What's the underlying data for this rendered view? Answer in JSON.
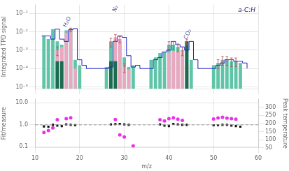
{
  "chart_data": [
    {
      "type": "bar",
      "log": "y",
      "ylabel": "Integrated TPD signal",
      "xlim": [
        10,
        60
      ],
      "xticks": [
        10,
        20,
        30,
        40,
        50,
        60
      ],
      "ylim": [
        8e-06,
        0.3
      ],
      "yticks": [
        {
          "value": 1e-05,
          "label": "10⁻⁵"
        },
        {
          "value": 0.0001,
          "label": "10⁻⁴"
        },
        {
          "value": 0.001,
          "label": "10⁻³"
        },
        {
          "value": 0.01,
          "label": "10⁻²"
        },
        {
          "value": 0.1,
          "label": "10⁻¹"
        }
      ],
      "grid": true,
      "tick_labels": "y",
      "annotations": [
        {
          "text": "H₂O",
          "x": 17.3,
          "y": 0.016,
          "color": "#555599"
        },
        {
          "text": "N₂",
          "x": 28.3,
          "y": 0.11,
          "color": "#555599"
        },
        {
          "text": "CO₂",
          "x": 44.3,
          "y": 0.0035,
          "color": "#555599"
        },
        {
          "text": "a-C:H",
          "color": "#222266"
        }
      ],
      "series": [
        {
          "type": "bar",
          "color": "#60c4a8",
          "x": [
            12,
            13,
            14,
            15,
            16,
            17,
            18,
            19,
            20,
            26,
            27,
            28,
            29,
            30,
            31,
            32,
            36,
            37,
            38,
            39,
            40,
            41,
            42,
            43,
            44,
            45,
            50,
            51,
            52,
            53,
            54,
            55,
            56
          ],
          "values": [
            0.006,
            0.004,
            0.014,
            0.003,
            0.002,
            0.012,
            0.015,
            0.0003,
            0.00015,
            0.00012,
            0.003,
            0.0003,
            0.003,
            0.0004,
            0.00012,
            0.00015,
            0.0003,
            0.0004,
            0.0007,
            0.0008,
            0.002,
            0.002,
            0.0015,
            0.001,
            0.003,
            0.0003,
            0.00015,
            0.0002,
            0.0003,
            0.0003,
            0.00025,
            0.00025,
            0.0002
          ]
        },
        {
          "type": "bar",
          "color": "#e8a8c0",
          "x": [
            15,
            16,
            17,
            18,
            19,
            28,
            29,
            30,
            31,
            40,
            41,
            42,
            43,
            44
          ],
          "values": [
            0.001,
            0.0015,
            0.009,
            0.013,
            0.0001,
            0.005,
            0.004,
            0.00012,
            9e-05,
            0.00075,
            0.0009,
            0.00085,
            0.0009,
            0.00015
          ]
        },
        {
          "type": "bar",
          "color": "#1a6b50",
          "x": [
            15,
            16,
            27,
            28,
            44
          ],
          "values": [
            0.00025,
            0.00025,
            0.00025,
            0.00025,
            0.003
          ]
        },
        {
          "type": "line",
          "line_style": "step",
          "color": "#2020cc",
          "x": [
            11.5,
            12.5,
            13.5,
            14.5,
            15.5,
            16.5,
            17.5,
            18.5,
            19.5,
            20.5,
            21.5,
            25.5,
            26.5,
            27.5,
            28.5,
            29.5,
            30.5,
            31.5,
            32.5,
            33.5,
            35.5,
            36.5,
            37.5,
            38.5,
            39.5,
            40.5,
            41.5,
            42.5,
            43.5,
            44.5,
            45.5,
            46.5,
            49.5,
            50.5,
            51.5,
            52.5,
            53.5,
            54.5,
            55.5,
            56.5,
            57.5
          ],
          "values": [
            0.006,
            0.006,
            0.004,
            0.014,
            0.004,
            0.003,
            0.013,
            0.015,
            0.0003,
            0.00015,
            0.0001,
            0.0001,
            0.00012,
            0.003,
            0.006,
            0.005,
            0.0005,
            0.00012,
            0.00015,
            0.0001,
            0.0001,
            0.0003,
            0.0004,
            0.0008,
            0.001,
            0.003,
            0.002,
            0.0015,
            0.001,
            0.003,
            0.0003,
            0.0001,
            0.0001,
            0.00015,
            0.0002,
            0.0003,
            0.0003,
            0.00025,
            0.00025,
            0.0002,
            0.0001
          ]
        },
        {
          "type": "errorbar",
          "color": "#c05060",
          "x": [
            15,
            18,
            27,
            28,
            29,
            30,
            40,
            41,
            42,
            43,
            44,
            51,
            52,
            53,
            54,
            55
          ],
          "values": [
            0.001,
            0.013,
            0.003,
            0.005,
            0.004,
            0.00012,
            0.002,
            0.002,
            0.0015,
            0.001,
            0.003,
            0.0002,
            0.0003,
            0.0003,
            0.00025,
            0.00025
          ],
          "yerr": [
            0.0005,
            0.003,
            0.0015,
            0.002,
            0.0015,
            6e-05,
            0.0009,
            0.0009,
            0.0007,
            0.0005,
            0.001,
            0.0001,
            0.00015,
            0.00015,
            0.000125,
            0.000125
          ]
        }
      ]
    },
    {
      "type": "scatter",
      "log": "y",
      "xlabel": "m/z",
      "ylabel": "Fit/measure",
      "y2label": "Peak temperature",
      "xlim": [
        10,
        60
      ],
      "xticks": [
        10,
        20,
        30,
        40,
        50,
        60
      ],
      "ylim": [
        0.09,
        15.0
      ],
      "yticks": [
        0.1,
        {
          "value": 1.0,
          "label": "1.0"
        },
        {
          "value": 10.0,
          "label": "10.0"
        }
      ],
      "y2lim": [
        50,
        350
      ],
      "y2ticks": [
        50,
        100,
        150,
        200,
        250,
        300
      ],
      "grid": true,
      "series": [
        {
          "type": "scatter",
          "marker": "square",
          "color": "#111111",
          "x": [
            12,
            13,
            14,
            15,
            16,
            17,
            18,
            19,
            27,
            28,
            29,
            30,
            31,
            38,
            39,
            40,
            41,
            42,
            43,
            44,
            50,
            51,
            52,
            53,
            54,
            55,
            56
          ],
          "values": [
            0.85,
            0.82,
            1.0,
            0.92,
            0.88,
            1.05,
            1.0,
            0.96,
            1.05,
            1.08,
            1.1,
            1.05,
            1.0,
            1.05,
            0.92,
            0.88,
            1.1,
            1.05,
            1.0,
            1.0,
            0.95,
            0.95,
            1.0,
            1.0,
            0.92,
            0.88,
            0.82
          ]
        },
        {
          "type": "scatter",
          "marker": "circle",
          "color": "#e832e8",
          "x": [
            12,
            13,
            14,
            15,
            17,
            18,
            28,
            29,
            30,
            32,
            38,
            39,
            40,
            41,
            42,
            43,
            50,
            51,
            52,
            53,
            54,
            55
          ],
          "values": [
            0.45,
            0.55,
            0.72,
            1.7,
            1.9,
            2.1,
            1.75,
            0.35,
            0.28,
            0.11,
            1.7,
            1.5,
            1.9,
            2.1,
            1.8,
            1.6,
            1.85,
            2.05,
            2.2,
            2.0,
            1.9,
            1.8
          ]
        },
        {
          "type": "hline",
          "line_style": "dashed",
          "color": "#999999",
          "values": [
            1.0
          ]
        }
      ]
    }
  ]
}
